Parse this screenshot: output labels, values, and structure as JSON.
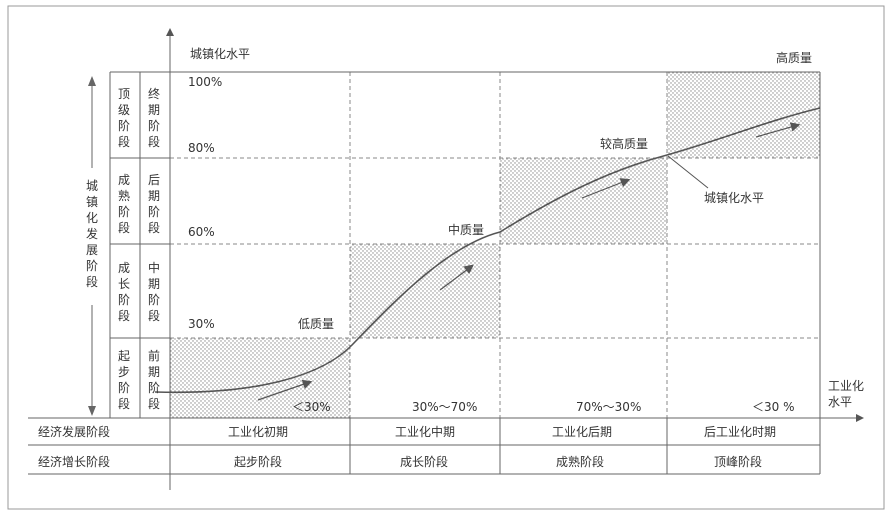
{
  "y_axis_title": "城镇化水平",
  "x_axis_title": [
    "工业化",
    "水平"
  ],
  "left_axis_title": [
    "城",
    "镇",
    "化",
    "发",
    "展",
    "阶",
    "段"
  ],
  "stage_groups": [
    {
      "col1": [
        "顶",
        "级",
        "阶",
        "段"
      ],
      "col2": [
        "终",
        "期",
        "阶",
        "段"
      ]
    },
    {
      "col1": [
        "成",
        "熟",
        "阶",
        "段"
      ],
      "col2": [
        "后",
        "期",
        "阶",
        "段"
      ]
    },
    {
      "col1": [
        "成",
        "长",
        "阶",
        "段"
      ],
      "col2": [
        "中",
        "期",
        "阶",
        "段"
      ]
    },
    {
      "col1": [
        "起",
        "步",
        "阶",
        "段"
      ],
      "col2": [
        "前",
        "期",
        "阶",
        "段"
      ]
    }
  ],
  "percent_labels": [
    "100%",
    "80%",
    "60%",
    "30%"
  ],
  "quality_labels": {
    "low": "低质量",
    "mid": "中质量",
    "higher": "较高质量",
    "high": "高质量"
  },
  "curve_label": "城镇化水平",
  "industrial_ranges": [
    "＜30%",
    "30%～70%",
    "70%～30%",
    "＜30 %"
  ],
  "rows": [
    {
      "header": "经济发展阶段",
      "cells": [
        "工业化初期",
        "工业化中期",
        "工业化后期",
        "后工业化时期"
      ]
    },
    {
      "header": "经济增长阶段",
      "cells": [
        "起步阶段",
        "成长阶段",
        "成熟阶段",
        "顶峰阶段"
      ]
    }
  ],
  "colors": {
    "line": "#555555",
    "dots": "#888888",
    "grid": "#777777"
  }
}
